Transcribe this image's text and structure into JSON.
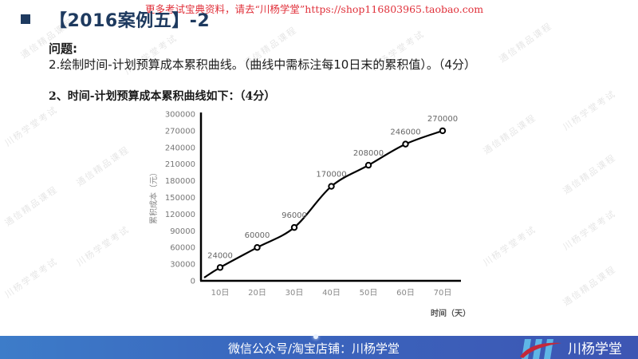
{
  "top_notice": "更多考试宝典资料，请去“川杨学堂”https://shop116803965.taobao.com",
  "title": "【2016案例五】-2",
  "question": {
    "label": "问题:",
    "text": "2.绘制时间-计划预算成本累积曲线。（曲线中需标注每10日末的累积值）。（4分）"
  },
  "answer_heading": "2、时间-计划预算成本累积曲线如下：（4分）",
  "watermark_text": [
    "川杨学堂考试",
    "通信精品课程"
  ],
  "colors": {
    "title": "#1e3a5f",
    "notice": "#e0303a",
    "footer_start": "#3d7cc9",
    "footer_end": "#3d55b3"
  },
  "footer": {
    "text": "微信公众号/淘宝店铺：川杨学堂",
    "brand": "川杨学堂",
    "brand_icon": "chuanyang-logo-icon"
  },
  "chart_data": {
    "type": "line",
    "title": "",
    "xlabel": "时间（天）",
    "ylabel": "累积成本（元）",
    "categories": [
      "10日",
      "20日",
      "30日",
      "40日",
      "50日",
      "60日",
      "70日"
    ],
    "values": [
      24000,
      60000,
      96000,
      170000,
      208000,
      246000,
      270000
    ],
    "data_labels": [
      "24000",
      "60000",
      "96000",
      "170000",
      "208000",
      "246000",
      "270000"
    ],
    "y_ticks": [
      "300000",
      "270000",
      "240000",
      "210000",
      "180000",
      "150000",
      "120000",
      "90000",
      "60000",
      "30000",
      "0"
    ],
    "ylim": [
      0,
      300000
    ],
    "grid": false,
    "legend": "none",
    "smooth": true,
    "marker": "hollow-circle"
  }
}
